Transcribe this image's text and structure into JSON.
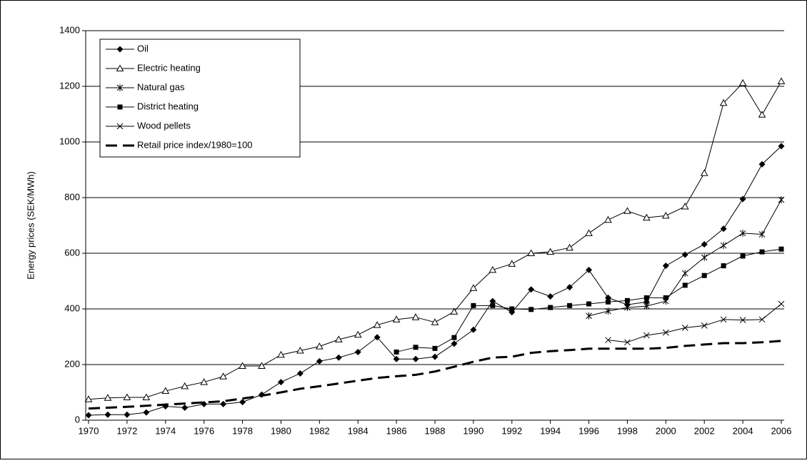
{
  "chart_data": {
    "type": "line",
    "y_label": "Energy prices (SEK/MWh)",
    "x": [
      1970,
      1971,
      1972,
      1973,
      1974,
      1975,
      1976,
      1977,
      1978,
      1979,
      1980,
      1981,
      1982,
      1983,
      1984,
      1985,
      1986,
      1987,
      1988,
      1989,
      1990,
      1991,
      1992,
      1993,
      1994,
      1995,
      1996,
      1997,
      1998,
      1999,
      2000,
      2001,
      2002,
      2003,
      2004,
      2005,
      2006
    ],
    "xlim": [
      1970,
      2006
    ],
    "xticks": [
      1970,
      1972,
      1974,
      1976,
      1978,
      1980,
      1982,
      1984,
      1986,
      1988,
      1990,
      1992,
      1994,
      1996,
      1998,
      2000,
      2002,
      2004,
      2006
    ],
    "ylim": [
      0,
      1400
    ],
    "yticks": [
      0,
      200,
      400,
      600,
      800,
      1000,
      1200,
      1400
    ],
    "grid": true,
    "legend": "top-left",
    "series": [
      {
        "name": "Oil",
        "color": "#000000",
        "marker": "diamond",
        "values": [
          18,
          20,
          20,
          28,
          50,
          45,
          58,
          58,
          65,
          92,
          137,
          168,
          212,
          225,
          245,
          298,
          220,
          220,
          228,
          275,
          325,
          428,
          388,
          470,
          445,
          478,
          540,
          440,
          415,
          425,
          555,
          595,
          632,
          688,
          795,
          920,
          985
        ]
      },
      {
        "name": "Electric heating",
        "color": "#000000",
        "marker": "triangle",
        "values": [
          75,
          80,
          82,
          82,
          105,
          122,
          137,
          157,
          195,
          195,
          235,
          250,
          265,
          290,
          307,
          342,
          362,
          370,
          352,
          390,
          475,
          540,
          562,
          600,
          605,
          620,
          672,
          720,
          752,
          728,
          735,
          768,
          888,
          1140,
          1212,
          1098,
          1218
        ]
      },
      {
        "name": "Natural gas",
        "color": "#000000",
        "marker": "asterisk",
        "values": [
          null,
          null,
          null,
          null,
          null,
          null,
          null,
          null,
          null,
          null,
          null,
          null,
          null,
          null,
          null,
          null,
          null,
          null,
          null,
          null,
          null,
          null,
          null,
          null,
          null,
          null,
          375,
          392,
          405,
          410,
          428,
          528,
          585,
          628,
          672,
          668,
          792
        ]
      },
      {
        "name": "District heating",
        "color": "#000000",
        "marker": "square",
        "values": [
          null,
          null,
          null,
          null,
          null,
          null,
          null,
          null,
          null,
          null,
          null,
          null,
          null,
          null,
          null,
          null,
          245,
          262,
          258,
          297,
          412,
          412,
          400,
          398,
          405,
          412,
          418,
          425,
          430,
          440,
          440,
          485,
          520,
          555,
          590,
          605,
          615
        ]
      },
      {
        "name": "Wood pellets",
        "color": "#000000",
        "marker": "cross",
        "values": [
          null,
          null,
          null,
          null,
          null,
          null,
          null,
          null,
          null,
          null,
          null,
          null,
          null,
          null,
          null,
          null,
          null,
          null,
          null,
          null,
          null,
          null,
          null,
          null,
          null,
          null,
          null,
          288,
          280,
          305,
          315,
          332,
          340,
          362,
          360,
          362,
          418
        ]
      },
      {
        "name": "Retail price index/1980=100",
        "color": "#000000",
        "marker": "none",
        "dash": true,
        "values": [
          42,
          45,
          48,
          52,
          56,
          60,
          64,
          68,
          78,
          88,
          100,
          113,
          122,
          132,
          142,
          152,
          158,
          163,
          175,
          192,
          210,
          225,
          228,
          242,
          248,
          252,
          257,
          257,
          257,
          257,
          260,
          267,
          272,
          277,
          277,
          280,
          285
        ]
      }
    ]
  }
}
